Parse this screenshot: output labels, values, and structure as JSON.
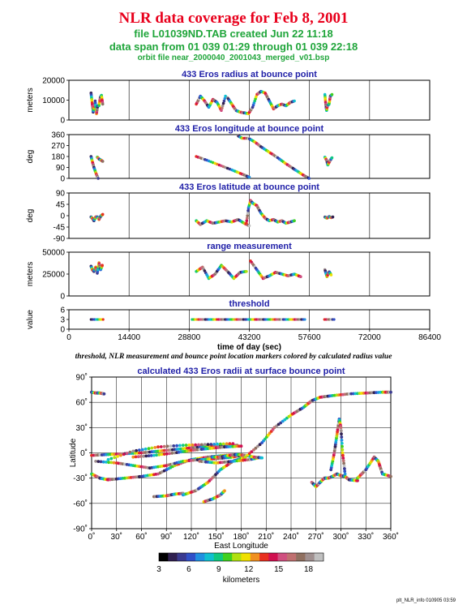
{
  "header": {
    "title": "NLR data coverage for Feb 8, 2001",
    "file_line": "file L01039ND.TAB created Jun 22 11:18",
    "span_line": "data span from 01 039 01:29 through 01 039 22:18",
    "orbit_line": "orbit file near_2000040_2001043_merged_v01.bsp"
  },
  "caption": "threshold, NLR measurement and bounce point location markers colored by calculated radius value",
  "footer": "plt_NLR_info 010905 03:59",
  "chart_data": [
    {
      "type": "scatter",
      "title": "433 Eros radius at bounce point",
      "ylabel": "meters",
      "ylim": [
        0,
        25000
      ],
      "yticks": [
        "20000",
        "10000",
        "0"
      ],
      "xlim": [
        0,
        86400
      ],
      "series": [
        {
          "x": [
            5300,
            5500,
            5800,
            6000,
            6300,
            6600,
            6900
          ],
          "y": [
            17000,
            12000,
            5000,
            8000,
            12000,
            4000,
            9000
          ]
        },
        {
          "x": [
            7200,
            7500,
            7800,
            8100
          ],
          "y": [
            9000,
            14000,
            15500,
            10000
          ]
        },
        {
          "x": [
            30500,
            31500,
            32500,
            33500,
            34500,
            35500,
            36500,
            37500
          ],
          "y": [
            10000,
            15000,
            12000,
            8000,
            13000,
            11000,
            6000,
            15000
          ]
        },
        {
          "x": [
            38000,
            39000,
            40000,
            41000,
            42000,
            43000,
            44000,
            45000,
            46000,
            47000,
            48000,
            49000,
            50000,
            51000,
            52000,
            53000,
            54000
          ],
          "y": [
            14000,
            10000,
            6000,
            5000,
            4500,
            4000,
            8000,
            16000,
            18000,
            17000,
            12000,
            7000,
            9000,
            10000,
            9000,
            11000,
            12000
          ]
        },
        {
          "x": [
            61300,
            61500,
            61700,
            61900,
            62300,
            62600,
            63000
          ],
          "y": [
            16000,
            10000,
            6000,
            9000,
            10000,
            15000,
            16000
          ]
        }
      ]
    },
    {
      "type": "scatter",
      "title": "433 Eros longitude at bounce point",
      "ylabel": "deg",
      "ylim": [
        0,
        360
      ],
      "yticks": [
        "360",
        "270",
        "180",
        "90",
        "0"
      ],
      "xlim": [
        0,
        86400
      ],
      "series": [
        {
          "x": [
            5300,
            5600,
            6000,
            6500,
            7000
          ],
          "y": [
            180,
            140,
            90,
            40,
            0
          ]
        },
        {
          "x": [
            6800,
            7200,
            7700,
            8100
          ],
          "y": [
            175,
            160,
            150,
            140
          ]
        },
        {
          "x": [
            30500,
            33000,
            36000,
            39000,
            41500,
            43200
          ],
          "y": [
            180,
            150,
            110,
            70,
            35,
            10
          ]
        },
        {
          "x": [
            40500,
            41500,
            43000,
            44500,
            46000,
            48000,
            50000,
            52000,
            54000,
            56000,
            57500
          ],
          "y": [
            350,
            330,
            330,
            300,
            260,
            215,
            170,
            120,
            75,
            30,
            0
          ]
        },
        {
          "x": [
            61300,
            61700,
            62000,
            62500,
            63000
          ],
          "y": [
            175,
            150,
            110,
            145,
            170
          ]
        }
      ]
    },
    {
      "type": "scatter",
      "title": "433 Eros latitude at bounce point",
      "ylabel": "deg",
      "ylim": [
        -90,
        90
      ],
      "yticks": [
        "90",
        "45",
        "0",
        "-45",
        "-90"
      ],
      "xlim": [
        0,
        86400
      ],
      "series": [
        {
          "x": [
            5300,
            5600,
            6000,
            6400,
            6800,
            7200,
            7700,
            8100
          ],
          "y": [
            -5,
            -10,
            -20,
            -5,
            -5,
            -15,
            0,
            5
          ]
        },
        {
          "x": [
            30500,
            31500,
            33000,
            34500,
            36000,
            37500,
            39000,
            40500,
            42000,
            43200
          ],
          "y": [
            -20,
            -35,
            -20,
            -30,
            -25,
            -20,
            -25,
            -15,
            -30,
            -40
          ]
        },
        {
          "x": [
            42500,
            43000,
            43500,
            44000,
            45000,
            46000,
            47000,
            48000,
            49000,
            50000,
            51000,
            52000,
            53000,
            54000
          ],
          "y": [
            -30,
            30,
            60,
            50,
            40,
            10,
            -10,
            -20,
            -15,
            -25,
            -20,
            -30,
            -25,
            -20
          ]
        },
        {
          "x": [
            61300,
            61800,
            62300,
            62800,
            63200
          ],
          "y": [
            -5,
            -10,
            -3,
            -8,
            -5
          ]
        }
      ]
    },
    {
      "type": "scatter",
      "title": "range measurement",
      "ylabel": "meters",
      "ylim": [
        0,
        50000
      ],
      "yticks": [
        "50000",
        "25000",
        "0"
      ],
      "xlim": [
        0,
        86400
      ],
      "series": [
        {
          "x": [
            5300,
            5600,
            6000,
            6400,
            6800,
            7200,
            7600,
            8000
          ],
          "y": [
            34000,
            30000,
            28000,
            33000,
            26000,
            38000,
            30000,
            35000
          ]
        },
        {
          "x": [
            30500,
            32000,
            33500,
            35000,
            36500,
            38000,
            39500,
            41000,
            42500
          ],
          "y": [
            28000,
            33000,
            20000,
            25000,
            35000,
            28000,
            20000,
            27000,
            28000
          ]
        },
        {
          "x": [
            43500,
            45000,
            46500,
            48000,
            49500,
            51000,
            52500,
            54000,
            55500
          ],
          "y": [
            40000,
            30000,
            20000,
            23000,
            27000,
            25000,
            23000,
            25000,
            22000
          ]
        },
        {
          "x": [
            61300,
            61800,
            62300,
            62800
          ],
          "y": [
            30000,
            22000,
            28000,
            24000
          ]
        }
      ]
    },
    {
      "type": "scatter",
      "title": "threshold",
      "ylabel": "value",
      "ylim": [
        0,
        6
      ],
      "yticks": [
        "6",
        "3",
        "0"
      ],
      "xlim": [
        0,
        86400
      ],
      "xticks": [
        "0",
        "14400",
        "28800",
        "43200",
        "57600",
        "72000",
        "86400"
      ],
      "xlabel": "time of day (sec)",
      "segments": [
        [
          5300,
          8200,
          3
        ],
        [
          29500,
          56500,
          3
        ],
        [
          61200,
          63500,
          3
        ]
      ]
    },
    {
      "type": "scatter",
      "title": "calculated 433 Eros radii at surface bounce point",
      "xlabel": "East Longitude",
      "ylabel": "Latitude",
      "xlim": [
        0,
        360
      ],
      "ylim": [
        -90,
        90
      ],
      "xticks": [
        "0˚",
        "30˚",
        "60˚",
        "90˚",
        "120˚",
        "150˚",
        "180˚",
        "210˚",
        "240˚",
        "270˚",
        "300˚",
        "330˚",
        "360˚"
      ],
      "yticks": [
        "90˚",
        "60˚",
        "30˚",
        "0˚",
        "-30˚",
        "-60˚",
        "-90˚"
      ],
      "series": [
        {
          "x": [
            0,
            5,
            10,
            15
          ],
          "y": [
            72,
            71,
            71,
            70
          ]
        },
        {
          "x": [
            0,
            10,
            20,
            40,
            60,
            80,
            100,
            120,
            140,
            160,
            180
          ],
          "y": [
            -25,
            -30,
            -32,
            -30,
            -28,
            -25,
            -15,
            -8,
            -5,
            -3,
            -2
          ]
        },
        {
          "x": [
            0,
            20,
            40,
            60,
            80,
            100,
            120,
            140,
            160,
            175
          ],
          "y": [
            -3,
            -2,
            -1,
            0,
            2,
            4,
            6,
            8,
            8,
            9
          ]
        },
        {
          "x": [
            5,
            30,
            50,
            70,
            90,
            110,
            130,
            150,
            170,
            180
          ],
          "y": [
            -10,
            -12,
            -15,
            -18,
            -15,
            -10,
            -8,
            -7,
            -5,
            -3
          ]
        },
        {
          "x": [
            20,
            50,
            80,
            110,
            140,
            170
          ],
          "y": [
            -8,
            2,
            7,
            9,
            10,
            11
          ]
        },
        {
          "x": [
            50,
            75,
            100,
            120,
            140,
            160,
            180
          ],
          "y": [
            -5,
            -3,
            0,
            3,
            5,
            7,
            8
          ]
        },
        {
          "x": [
            75,
            90,
            100,
            110
          ],
          "y": [
            -52,
            -51,
            -49,
            -48
          ]
        },
        {
          "x": [
            110,
            125,
            140,
            155,
            170,
            185
          ],
          "y": [
            -50,
            -45,
            -35,
            -20,
            -10,
            -5
          ]
        },
        {
          "x": [
            135,
            145,
            155,
            160
          ],
          "y": [
            -58,
            -55,
            -50,
            -45
          ]
        },
        {
          "x": [
            130,
            150,
            170,
            190,
            200
          ],
          "y": [
            -10,
            -12,
            -10,
            -8,
            -6
          ]
        },
        {
          "x": [
            145,
            155,
            165,
            175,
            185,
            195,
            205
          ],
          "y": [
            -5,
            -5,
            -3,
            -2,
            -3,
            -5,
            -6
          ]
        },
        {
          "x": [
            185,
            205,
            220,
            240,
            255,
            265,
            275,
            290,
            310,
            330,
            350,
            360
          ],
          "y": [
            -5,
            12,
            30,
            45,
            54,
            62,
            66,
            68,
            70,
            71,
            72,
            72
          ]
        },
        {
          "x": [
            265,
            270,
            275,
            280,
            285,
            290,
            295,
            300,
            305,
            310,
            320
          ],
          "y": [
            -35,
            -40,
            -35,
            -30,
            -30,
            -28,
            -25,
            -27,
            -28,
            -32,
            -33
          ]
        },
        {
          "x": [
            288,
            292,
            295,
            298,
            300,
            302,
            305
          ],
          "y": [
            -20,
            0,
            20,
            40,
            30,
            0,
            -25
          ]
        },
        {
          "x": [
            320,
            330,
            340,
            345,
            350,
            360
          ],
          "y": [
            -30,
            -20,
            -5,
            -10,
            -25,
            -28
          ]
        }
      ]
    }
  ],
  "colorbar": {
    "ticks": [
      "3",
      "6",
      "9",
      "12",
      "15",
      "18"
    ],
    "range": [
      3,
      19.5
    ],
    "label": "kilometers",
    "colors": [
      "#000000",
      "#302050",
      "#3a3a90",
      "#3050c8",
      "#2090e0",
      "#10c0d0",
      "#10c880",
      "#40d020",
      "#b0e010",
      "#f0e000",
      "#f09020",
      "#e83020",
      "#d01050",
      "#d05080",
      "#c07070",
      "#907060",
      "#a09090",
      "#c0c0c0"
    ]
  }
}
